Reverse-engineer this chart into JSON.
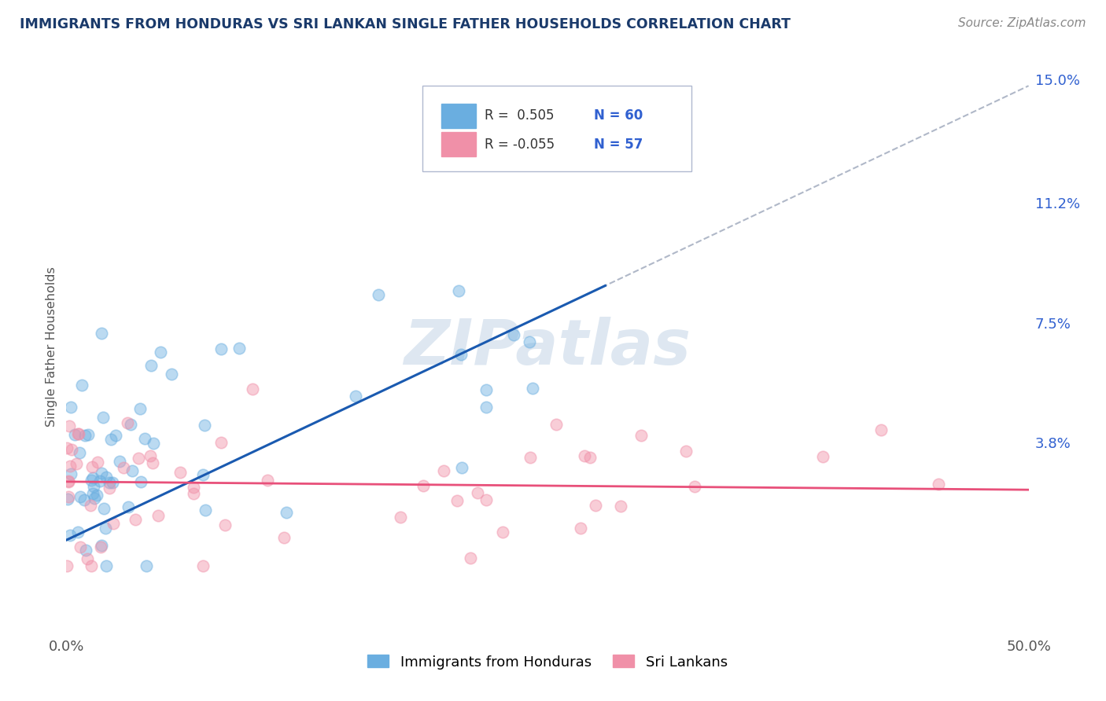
{
  "title": "IMMIGRANTS FROM HONDURAS VS SRI LANKAN SINGLE FATHER HOUSEHOLDS CORRELATION CHART",
  "source": "Source: ZipAtlas.com",
  "ylabel": "Single Father Households",
  "xmin": 0.0,
  "xmax": 50.0,
  "ymin": -2.0,
  "ymax": 15.5,
  "ytick_vals": [
    0.0,
    3.8,
    7.5,
    11.2,
    15.0
  ],
  "ytick_labels": [
    "",
    "3.8%",
    "7.5%",
    "11.2%",
    "15.0%"
  ],
  "blue_R": 0.505,
  "blue_N": 60,
  "pink_R": -0.055,
  "pink_N": 57,
  "blue_scatter_color": "#6aaee0",
  "pink_scatter_color": "#f090a8",
  "blue_line_color": "#1a5ab0",
  "pink_line_color": "#e8507a",
  "dashed_line_color": "#b0b8c8",
  "background_color": "#ffffff",
  "grid_color": "#cccccc",
  "title_color": "#1a3a6b",
  "source_color": "#888888",
  "ytick_color": "#3060d0",
  "xtick_color": "#555555",
  "watermark_color": "#c8d8e8",
  "legend_box_color": "#e8eef8",
  "legend_border_color": "#b0b8d0",
  "blue_line_intercept": 0.8,
  "blue_line_slope": 0.28,
  "pink_line_intercept": 2.6,
  "pink_line_slope": -0.005
}
